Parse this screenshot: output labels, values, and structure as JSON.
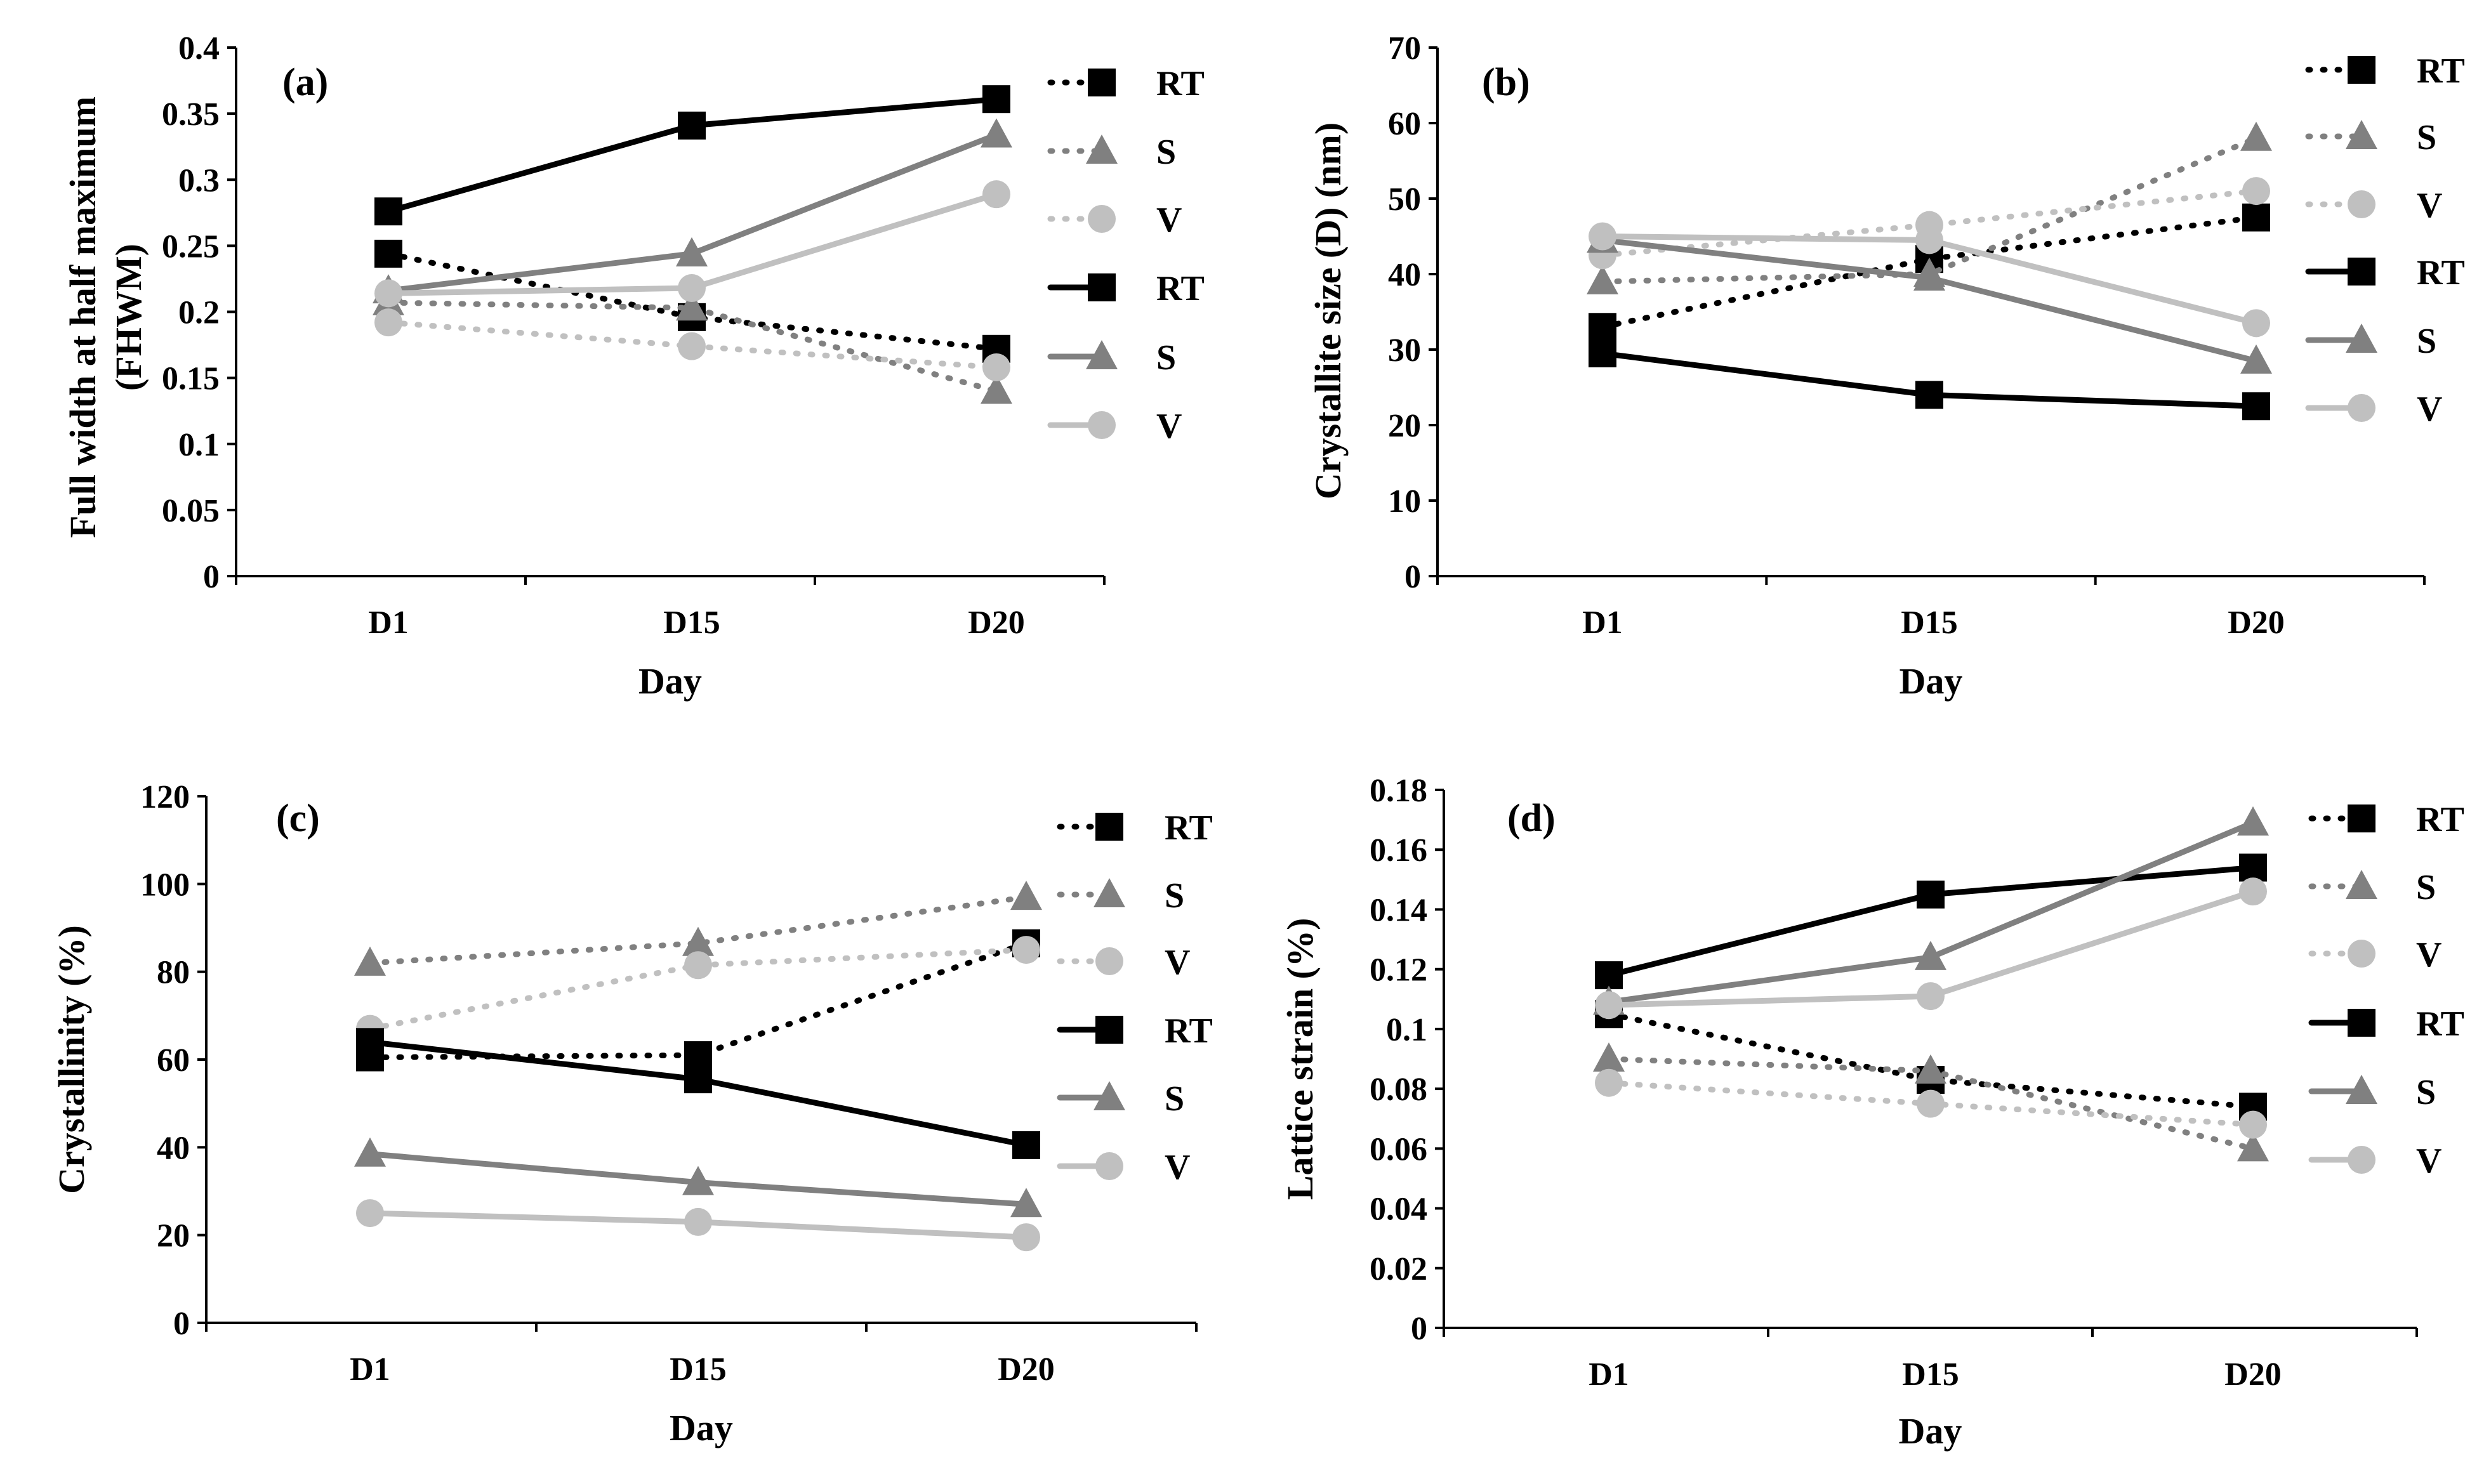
{
  "chart_data": [
    {
      "type": "line",
      "panel": "(a)",
      "categories": [
        "D1",
        "D15",
        "D20"
      ],
      "xlabel": "Day",
      "ylabel_lines": [
        "Full width at half maximum",
        "(FHWM)"
      ],
      "ylim": [
        0,
        0.4
      ],
      "yticks": [
        0,
        0.05,
        0.1,
        0.15,
        0.2,
        0.25,
        0.3,
        0.35,
        0.4
      ],
      "ytick_labels": [
        "0",
        "0.05",
        "0.1",
        "0.15",
        "0.2",
        "0.25",
        "0.3",
        "0.35",
        "0.4"
      ],
      "series": [
        {
          "name": "RT",
          "marker": "square",
          "dash": "dotted",
          "color": "#000000",
          "values": [
            0.244,
            0.196,
            0.172
          ]
        },
        {
          "name": "S",
          "marker": "triangle",
          "dash": "dotted",
          "color": "#808080",
          "values": [
            0.207,
            0.203,
            0.14
          ]
        },
        {
          "name": "V",
          "marker": "circle",
          "dash": "dotted",
          "color": "#c0c0c0",
          "values": [
            0.192,
            0.174,
            0.158
          ]
        },
        {
          "name": "RT",
          "marker": "square",
          "dash": "solid",
          "color": "#000000",
          "values": [
            0.276,
            0.341,
            0.361
          ]
        },
        {
          "name": "S",
          "marker": "triangle",
          "dash": "solid",
          "color": "#808080",
          "values": [
            0.216,
            0.244,
            0.334
          ]
        },
        {
          "name": "V",
          "marker": "circle",
          "dash": "solid",
          "color": "#c0c0c0",
          "values": [
            0.214,
            0.218,
            0.289
          ]
        }
      ]
    },
    {
      "type": "line",
      "panel": "(b)",
      "categories": [
        "D1",
        "D15",
        "D20"
      ],
      "xlabel": "Day",
      "ylabel_lines": [
        "Crystallite size (D) (nm)"
      ],
      "ylim": [
        0,
        70
      ],
      "yticks": [
        0,
        10,
        20,
        30,
        40,
        50,
        60,
        70
      ],
      "ytick_labels": [
        "0",
        "10",
        "20",
        "30",
        "40",
        "50",
        "60",
        "70"
      ],
      "series": [
        {
          "name": "RT",
          "marker": "square",
          "dash": "dotted",
          "color": "#000000",
          "values": [
            33,
            42,
            47.5
          ]
        },
        {
          "name": "S",
          "marker": "triangle",
          "dash": "dotted",
          "color": "#808080",
          "values": [
            39,
            40,
            58
          ]
        },
        {
          "name": "V",
          "marker": "circle",
          "dash": "dotted",
          "color": "#c0c0c0",
          "values": [
            42.5,
            46.5,
            51
          ]
        },
        {
          "name": "RT",
          "marker": "square",
          "dash": "solid",
          "color": "#000000",
          "values": [
            29.5,
            24,
            22.5
          ]
        },
        {
          "name": "S",
          "marker": "triangle",
          "dash": "solid",
          "color": "#808080",
          "values": [
            44.5,
            39.5,
            28.5
          ]
        },
        {
          "name": "V",
          "marker": "circle",
          "dash": "solid",
          "color": "#c0c0c0",
          "values": [
            45,
            44.5,
            33.5
          ]
        }
      ]
    },
    {
      "type": "line",
      "panel": "(c)",
      "categories": [
        "D1",
        "D15",
        "D20"
      ],
      "xlabel": "Day",
      "ylabel_lines": [
        "Crystallinity (%)"
      ],
      "ylim": [
        0,
        120
      ],
      "yticks": [
        0,
        20,
        40,
        60,
        80,
        100,
        120
      ],
      "ytick_labels": [
        "0",
        "20",
        "40",
        "60",
        "80",
        "100",
        "120"
      ],
      "series": [
        {
          "name": "RT",
          "marker": "square",
          "dash": "dotted",
          "color": "#000000",
          "values": [
            60.5,
            61,
            86.5
          ]
        },
        {
          "name": "S",
          "marker": "triangle",
          "dash": "dotted",
          "color": "#808080",
          "values": [
            82,
            86.5,
            97
          ]
        },
        {
          "name": "V",
          "marker": "circle",
          "dash": "dotted",
          "color": "#c0c0c0",
          "values": [
            67,
            81.5,
            85
          ]
        },
        {
          "name": "RT",
          "marker": "square",
          "dash": "solid",
          "color": "#000000",
          "values": [
            64,
            55.5,
            40.5
          ]
        },
        {
          "name": "S",
          "marker": "triangle",
          "dash": "solid",
          "color": "#808080",
          "values": [
            38.5,
            32,
            27
          ]
        },
        {
          "name": "V",
          "marker": "circle",
          "dash": "solid",
          "color": "#c0c0c0",
          "values": [
            25,
            23,
            19.5
          ]
        }
      ]
    },
    {
      "type": "line",
      "panel": "(d)",
      "categories": [
        "D1",
        "D15",
        "D20"
      ],
      "xlabel": "Day",
      "ylabel_lines": [
        "Lattice strain (%)"
      ],
      "ylim": [
        0,
        0.18
      ],
      "yticks": [
        0,
        0.02,
        0.04,
        0.06,
        0.08,
        0.1,
        0.12,
        0.14,
        0.16,
        0.18
      ],
      "ytick_labels": [
        "0",
        "0.02",
        "0.04",
        "0.06",
        "0.08",
        "0.1",
        "0.12",
        "0.14",
        "0.16",
        "0.18"
      ],
      "series": [
        {
          "name": "RT",
          "marker": "square",
          "dash": "dotted",
          "color": "#000000",
          "values": [
            0.105,
            0.083,
            0.074
          ]
        },
        {
          "name": "S",
          "marker": "triangle",
          "dash": "dotted",
          "color": "#808080",
          "values": [
            0.09,
            0.086,
            0.06
          ]
        },
        {
          "name": "V",
          "marker": "circle",
          "dash": "dotted",
          "color": "#c0c0c0",
          "values": [
            0.082,
            0.075,
            0.068
          ]
        },
        {
          "name": "RT",
          "marker": "square",
          "dash": "solid",
          "color": "#000000",
          "values": [
            0.118,
            0.145,
            0.154
          ]
        },
        {
          "name": "S",
          "marker": "triangle",
          "dash": "solid",
          "color": "#808080",
          "values": [
            0.109,
            0.124,
            0.169
          ]
        },
        {
          "name": "V",
          "marker": "circle",
          "dash": "solid",
          "color": "#c0c0c0",
          "values": [
            0.108,
            0.111,
            0.146
          ]
        }
      ]
    }
  ]
}
